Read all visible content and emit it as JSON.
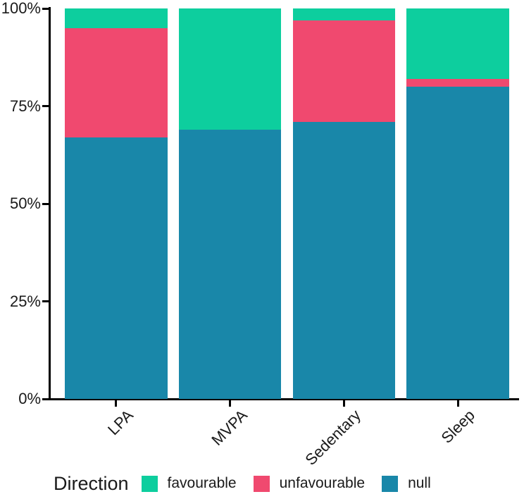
{
  "chart_data": {
    "type": "bar",
    "stacked": true,
    "orientation": "vertical",
    "title": "",
    "xlabel": "",
    "ylabel": "",
    "grid": false,
    "ylim": [
      0,
      100
    ],
    "categories": [
      "LPA",
      "MVPA",
      "Sedentary",
      "Sleep"
    ],
    "series": [
      {
        "name": "null",
        "color": "#1987A9",
        "values": [
          67,
          69,
          71,
          80
        ]
      },
      {
        "name": "unfavourable",
        "color": "#F0496F",
        "values": [
          28,
          0,
          26,
          2
        ]
      },
      {
        "name": "favourable",
        "color": "#0DCE9E",
        "values": [
          5,
          31,
          3,
          18
        ]
      }
    ],
    "y_ticks": [
      {
        "label": "0%",
        "value": 0
      },
      {
        "label": "25%",
        "value": 25
      },
      {
        "label": "50%",
        "value": 50
      },
      {
        "label": "75%",
        "value": 75
      },
      {
        "label": "100%",
        "value": 100
      }
    ],
    "legend": {
      "title": "Direction",
      "position": "bottom",
      "items": [
        {
          "label": "favourable",
          "color": "#0DCE9E"
        },
        {
          "label": "unfavourable",
          "color": "#F0496F"
        },
        {
          "label": "null",
          "color": "#1987A9"
        }
      ]
    },
    "colors": {
      "axis": "#000000",
      "text": "#1a1a1a",
      "background": "#ffffff"
    }
  }
}
